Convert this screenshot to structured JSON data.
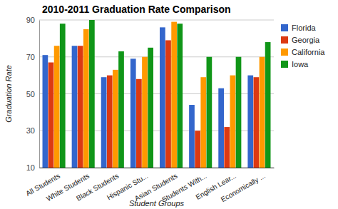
{
  "chart_data": {
    "type": "bar",
    "title": "2010-2011 Graduation Rate Comparison",
    "x_label": "Student Groups",
    "y_label": "Graduation Rate",
    "categories": [
      "All Students",
      "White Students",
      "Black Students",
      "Hispanic Stu...",
      "Asian Students",
      "Students With...",
      "English Lear...",
      "Economically ..."
    ],
    "series": [
      {
        "name": "Florida",
        "color": "#3366cc",
        "values": [
          71,
          76,
          59,
          69,
          86,
          44,
          53,
          60
        ]
      },
      {
        "name": "Georgia",
        "color": "#dc3912",
        "values": [
          67,
          76,
          60,
          58,
          79,
          30,
          32,
          59
        ]
      },
      {
        "name": "California",
        "color": "#ff9900",
        "values": [
          76,
          85,
          63,
          70,
          89,
          59,
          60,
          70
        ]
      },
      {
        "name": "Iowa",
        "color": "#109618",
        "values": [
          88,
          90,
          73,
          75,
          88,
          70,
          70,
          78
        ]
      }
    ],
    "ylim": [
      10,
      90
    ],
    "yticks": [
      10,
      30,
      50,
      70,
      90
    ],
    "grid": true,
    "legend": "right"
  }
}
